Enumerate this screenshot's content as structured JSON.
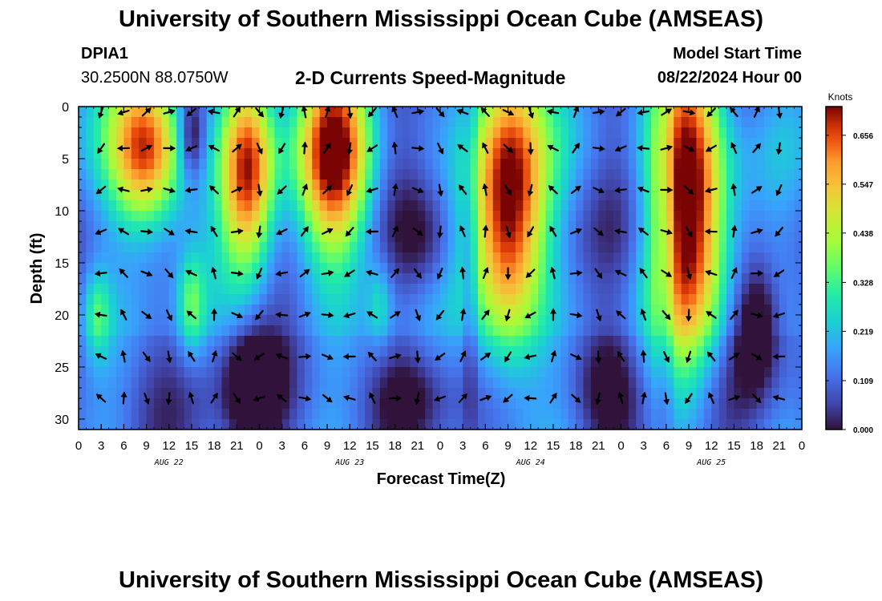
{
  "header": {
    "title": "University of Southern Mississippi Ocean Cube (AMSEAS)",
    "station": "DPIA1",
    "coords": "30.2500N  88.0750W",
    "model_start_label": "Model Start Time",
    "model_start_value": "08/22/2024 Hour 00"
  },
  "footer": {
    "title": "University of Southern Mississippi Ocean Cube (AMSEAS)"
  },
  "chart_data": {
    "type": "heatmap",
    "title": "2-D Currents Speed-Magnitude",
    "xlabel": "Forecast Time(Z)",
    "ylabel": "Depth (ft)",
    "xlim": [
      0,
      96
    ],
    "ylim": [
      0,
      31
    ],
    "x_tick_labels": [
      "0",
      "3",
      "6",
      "9",
      "12",
      "15",
      "18",
      "21",
      "0",
      "3",
      "6",
      "9",
      "12",
      "15",
      "18",
      "21",
      "0",
      "3",
      "6",
      "9",
      "12",
      "15",
      "18",
      "21",
      "0",
      "3",
      "6",
      "9",
      "12",
      "15",
      "18",
      "21",
      "0"
    ],
    "day_labels": [
      "AUG 22",
      "AUG 23",
      "AUG 24",
      "AUG 25"
    ],
    "y_ticks": [
      0,
      5,
      10,
      15,
      20,
      25,
      30
    ],
    "colorbar": {
      "unit": "Knots",
      "ticks": [
        "0.656",
        "0.547",
        "0.438",
        "0.328",
        "0.219",
        "0.109",
        "0.000"
      ],
      "min": 0.0,
      "max": 0.72
    },
    "speed_features": [
      {
        "t": 9,
        "tw": 3.5,
        "d": 4,
        "dw": 5.5,
        "v": 0.6
      },
      {
        "t": 22.5,
        "tw": 2.5,
        "d": 6,
        "dw": 7,
        "v": 0.55
      },
      {
        "t": 34,
        "tw": 3.5,
        "d": 5,
        "dw": 7,
        "v": 0.6
      },
      {
        "t": 57,
        "tw": 3.5,
        "d": 9,
        "dw": 11,
        "v": 0.65
      },
      {
        "t": 81,
        "tw": 3.5,
        "d": 8,
        "dw": 12,
        "v": 0.65
      },
      {
        "t": 15,
        "tw": 1.3,
        "d": 19,
        "dw": 3.5,
        "v": 0.2
      },
      {
        "t": 2.5,
        "tw": 1.2,
        "d": 20,
        "dw": 3,
        "v": 0.17
      },
      {
        "t": 40,
        "tw": 1.2,
        "d": 19,
        "dw": 3,
        "v": 0.13
      },
      {
        "t": 15,
        "tw": 1.3,
        "d": 3,
        "dw": 3,
        "v": -0.22
      },
      {
        "t": 23,
        "tw": 2.5,
        "d": 27,
        "dw": 4,
        "v": -0.22
      },
      {
        "t": 46,
        "tw": 3,
        "d": 13,
        "dw": 4,
        "v": -0.13
      },
      {
        "t": 90,
        "tw": 2,
        "d": 21,
        "dw": 4,
        "v": -0.2
      },
      {
        "t": 70,
        "tw": 3,
        "d": 27,
        "dw": 4,
        "v": -0.12
      },
      {
        "t": 44,
        "tw": 3,
        "d": 28,
        "dw": 3,
        "v": -0.1
      },
      {
        "t": 52,
        "tw": 0.7,
        "d": 15,
        "dw": 12,
        "v": -0.12
      },
      {
        "t": 78,
        "tw": 0.8,
        "d": 15,
        "dw": 12,
        "v": -0.12
      }
    ],
    "arrow_depths": [
      0,
      4,
      8,
      12,
      16,
      20,
      24,
      28
    ],
    "arrow_interval_hours": 3
  }
}
